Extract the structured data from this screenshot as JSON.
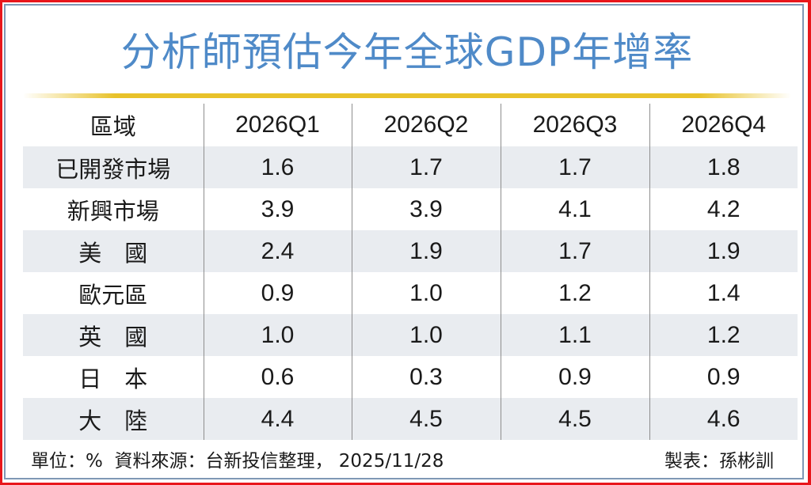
{
  "title": "分析師預估今年全球GDP年增率",
  "colors": {
    "title": "#4f8ac8",
    "accent_rule": "#e8c22a",
    "row_shade": "#e9ecf0",
    "frame_outer": "#e8161b",
    "frame_inner": "#7f98b5"
  },
  "table": {
    "header": [
      "區域",
      "2026Q1",
      "2026Q2",
      "2026Q3",
      "2026Q4"
    ],
    "rows": [
      {
        "region": "已開發市場",
        "values": [
          "1.6",
          "1.7",
          "1.7",
          "1.8"
        ]
      },
      {
        "region": "新興市場",
        "values": [
          "3.9",
          "3.9",
          "4.1",
          "4.2"
        ]
      },
      {
        "region": "美　國",
        "values": [
          "2.4",
          "1.9",
          "1.7",
          "1.9"
        ]
      },
      {
        "region": "歐元區",
        "values": [
          "0.9",
          "1.0",
          "1.2",
          "1.4"
        ]
      },
      {
        "region": "英　國",
        "values": [
          "1.0",
          "1.0",
          "1.1",
          "1.2"
        ]
      },
      {
        "region": "日　本",
        "values": [
          "0.6",
          "0.3",
          "0.9",
          "0.9"
        ]
      },
      {
        "region": "大　陸",
        "values": [
          "4.4",
          "4.5",
          "4.5",
          "4.6"
        ]
      }
    ]
  },
  "footer": {
    "unit_source": "單位：%  資料來源：台新投信整理， 2025/11/28",
    "credit": "製表：孫彬訓"
  },
  "chart_data": {
    "type": "table",
    "title": "分析師預估今年全球GDP年增率",
    "unit": "%",
    "columns": [
      "區域",
      "2026Q1",
      "2026Q2",
      "2026Q3",
      "2026Q4"
    ],
    "categories": [
      "2026Q1",
      "2026Q2",
      "2026Q3",
      "2026Q4"
    ],
    "series": [
      {
        "name": "已開發市場",
        "values": [
          1.6,
          1.7,
          1.7,
          1.8
        ]
      },
      {
        "name": "新興市場",
        "values": [
          3.9,
          3.9,
          4.1,
          4.2
        ]
      },
      {
        "name": "美國",
        "values": [
          2.4,
          1.9,
          1.7,
          1.9
        ]
      },
      {
        "name": "歐元區",
        "values": [
          0.9,
          1.0,
          1.2,
          1.4
        ]
      },
      {
        "name": "英國",
        "values": [
          1.0,
          1.0,
          1.1,
          1.2
        ]
      },
      {
        "name": "日本",
        "values": [
          0.6,
          0.3,
          0.9,
          0.9
        ]
      },
      {
        "name": "大陸",
        "values": [
          4.4,
          4.5,
          4.5,
          4.6
        ]
      }
    ],
    "source": "台新投信整理",
    "date": "2025/11/28",
    "credit": "孫彬訓"
  }
}
